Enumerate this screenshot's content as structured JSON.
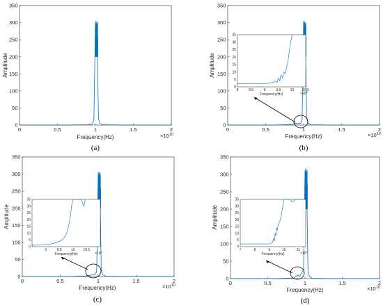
{
  "chart_data": [
    {
      "type": "line",
      "panel": "(a)",
      "xlabel": "Frequency(Hz)",
      "ylabel": "Amplitude",
      "x_multiplier": "×10",
      "x_exponent": "10",
      "xlim": [
        0,
        2
      ],
      "ylim": [
        0,
        350
      ],
      "xticks": [
        "0",
        "0.5",
        "1",
        "1.5",
        "2"
      ],
      "yticks": [
        "0",
        "50",
        "100",
        "150",
        "200",
        "250",
        "300",
        "350"
      ],
      "series": [
        {
          "x": [
            0,
            0.6,
            0.9,
            0.96,
            0.98,
            0.99,
            1.0,
            1.005,
            1.01,
            1.015,
            1.02,
            1.03,
            1.04,
            1.06,
            1.1,
            1.4,
            2.0
          ],
          "y": [
            0,
            0,
            1,
            3,
            15,
            150,
            305,
            270,
            300,
            265,
            305,
            160,
            20,
            5,
            1,
            0,
            0
          ]
        }
      ],
      "inset": null,
      "color": "#0072bd"
    },
    {
      "type": "line",
      "panel": "(b)",
      "xlabel": "Frequency(Hz)",
      "ylabel": "Amplitude",
      "x_multiplier": "×10",
      "x_exponent": "10",
      "xlim": [
        0,
        2
      ],
      "ylim": [
        0,
        350
      ],
      "xticks": [
        "0",
        "0.5",
        "1",
        "1.5",
        "2"
      ],
      "yticks": [
        "0",
        "50",
        "100",
        "150",
        "200",
        "250",
        "300",
        "350"
      ],
      "series": [
        {
          "x": [
            0,
            0.6,
            0.85,
            0.9,
            0.94,
            0.96,
            0.98,
            0.99,
            1.0,
            1.005,
            1.01,
            1.015,
            1.02,
            1.03,
            1.04,
            1.06,
            1.1,
            1.4,
            2.0
          ],
          "y": [
            0,
            0,
            2,
            6,
            4,
            5,
            15,
            150,
            305,
            270,
            305,
            260,
            300,
            160,
            20,
            5,
            1,
            0,
            0
          ]
        }
      ],
      "inset": {
        "xlim": [
          8,
          10.5
        ],
        "ylim": [
          0,
          35
        ],
        "xticks": [
          "8",
          "8.5",
          "9",
          "9.5",
          "10",
          "10.5"
        ],
        "yticks": [
          "0",
          "5",
          "10",
          "15",
          "20",
          "25",
          "30",
          "35"
        ],
        "xlabel": "Frequency(Hz)",
        "x_multiplier": "×10",
        "x_exponent": "9",
        "series": {
          "x": [
            8,
            8.5,
            9.0,
            9.3,
            9.4,
            9.45,
            9.5,
            9.55,
            9.6,
            9.65,
            9.7,
            9.75,
            9.8,
            9.85,
            9.9,
            9.95,
            10.0
          ],
          "y": [
            2,
            2,
            2,
            3,
            4,
            3,
            6,
            4,
            8,
            6,
            10,
            9,
            13,
            17,
            24,
            30,
            35
          ]
        }
      },
      "color": "#0072bd"
    },
    {
      "type": "line",
      "panel": "(c)",
      "xlabel": "Frequency(Hz)",
      "ylabel": "Amplitude",
      "x_multiplier": "×10",
      "x_exponent": "10",
      "xlim": [
        0,
        2
      ],
      "ylim": [
        0,
        350
      ],
      "xticks": [
        "0",
        "0.5",
        "1",
        "1.5",
        "2"
      ],
      "yticks": [
        "0",
        "50",
        "100",
        "150",
        "200",
        "250",
        "300",
        "350"
      ],
      "series": [
        {
          "x": [
            0,
            0.6,
            0.85,
            0.9,
            0.94,
            0.96,
            0.98,
            0.99,
            1.0,
            1.005,
            1.01,
            1.015,
            1.02,
            1.03,
            1.04,
            1.06,
            1.1,
            1.4,
            2.0
          ],
          "y": [
            0,
            0,
            2,
            4,
            5,
            6,
            15,
            150,
            305,
            265,
            305,
            260,
            305,
            160,
            20,
            5,
            1,
            0,
            0
          ]
        }
      ],
      "inset": {
        "xlim": [
          8.5,
          11
        ],
        "ylim": [
          0,
          35
        ],
        "xticks": [
          "9",
          "9.5",
          "10",
          "10.5"
        ],
        "yticks": [
          "0",
          "5",
          "10",
          "15",
          "20",
          "25",
          "30",
          "35"
        ],
        "xlabel": "Frequency(Hz)",
        "x_multiplier": "×10",
        "x_exponent": "9",
        "series": {
          "x": [
            8.5,
            9.0,
            9.2,
            9.3,
            9.4,
            9.5,
            9.6,
            9.7,
            9.75,
            9.8,
            9.85,
            9.9,
            9.95,
            10.0,
            10.1,
            10.2,
            10.3,
            10.4,
            10.45
          ],
          "y": [
            1,
            1.5,
            2,
            2.5,
            3,
            4,
            5,
            7,
            9,
            12,
            16,
            22,
            30,
            35,
            35,
            35,
            35,
            30,
            35
          ]
        }
      },
      "color": "#0072bd"
    },
    {
      "type": "line",
      "panel": "(d)",
      "xlabel": "Frequency(Hz)",
      "ylabel": "Amplitude",
      "x_multiplier": "×10",
      "x_exponent": "10",
      "xlim": [
        0,
        2
      ],
      "ylim": [
        0,
        350
      ],
      "xticks": [
        "0",
        "0.5",
        "1",
        "1.5",
        "2"
      ],
      "yticks": [
        "0",
        "50",
        "100",
        "150",
        "200",
        "250",
        "300",
        "350"
      ],
      "series": [
        {
          "x": [
            0,
            0.6,
            0.85,
            0.9,
            0.93,
            0.95,
            0.97,
            0.98,
            0.99,
            1.0,
            1.005,
            1.01,
            1.015,
            1.02,
            1.03,
            1.04,
            1.06,
            1.1,
            1.4,
            2.0
          ],
          "y": [
            0,
            0,
            2,
            10,
            6,
            15,
            20,
            30,
            160,
            310,
            275,
            318,
            270,
            310,
            160,
            20,
            5,
            1,
            0,
            0
          ]
        }
      ],
      "inset": {
        "xlim": [
          7,
          11.5
        ],
        "ylim": [
          0,
          35
        ],
        "xticks": [
          "7",
          "8",
          "9",
          "10",
          "11"
        ],
        "yticks": [
          "0",
          "5",
          "10",
          "15",
          "20",
          "25",
          "30",
          "35"
        ],
        "xlabel": "Frequency(Hz)",
        "x_multiplier": "×10",
        "x_exponent": "9",
        "series": {
          "x": [
            7,
            8,
            9,
            9.2,
            9.3,
            9.35,
            9.4,
            9.45,
            9.5,
            9.55,
            9.6,
            9.7,
            9.8,
            9.9,
            10.0,
            10.2,
            10.4,
            10.6,
            10.8,
            11.0,
            11.5
          ],
          "y": [
            2,
            2,
            2,
            3,
            6,
            4,
            10,
            8,
            14,
            12,
            16,
            18,
            22,
            28,
            35,
            35,
            35,
            33,
            35,
            35,
            35
          ]
        }
      },
      "color": "#0072bd"
    }
  ]
}
